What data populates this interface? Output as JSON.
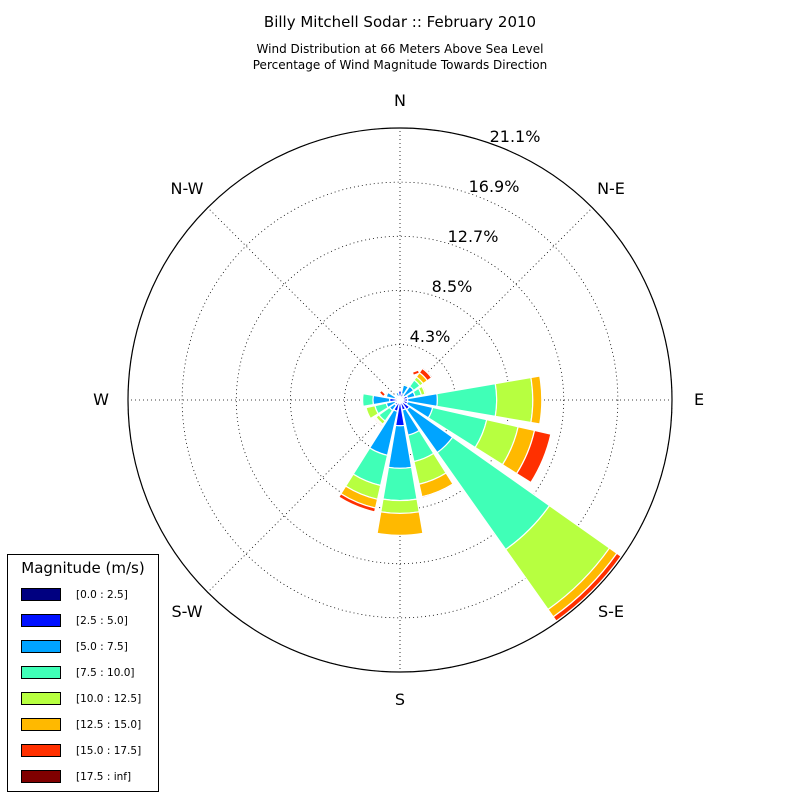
{
  "title": "Billy Mitchell Sodar :: February 2010",
  "subtitle_line1": "Wind Distribution at 66 Meters Above Sea Level",
  "subtitle_line2": "Percentage of Wind Magnitude Towards Direction",
  "legend": {
    "title": "Magnitude (m/s)",
    "items": [
      {
        "label": "[0.0 : 2.5]",
        "color": "#000080"
      },
      {
        "label": "[2.5 : 5.0]",
        "color": "#0010ff"
      },
      {
        "label": "[5.0 : 7.5]",
        "color": "#00a4ff"
      },
      {
        "label": "[7.5 : 10.0]",
        "color": "#40ffb7"
      },
      {
        "label": "[10.0 : 12.5]",
        "color": "#b7ff40"
      },
      {
        "label": "[12.5 : 15.0]",
        "color": "#ffb900"
      },
      {
        "label": "[15.0 : 17.5]",
        "color": "#ff3000"
      },
      {
        "label": "[17.5 : inf]",
        "color": "#800000"
      }
    ]
  },
  "chart_data": {
    "type": "windrose",
    "title": "Billy Mitchell Sodar :: February 2010",
    "radial_unit": "percent",
    "radial_max": 21.1,
    "radial_ticks": [
      "4.3%",
      "8.5%",
      "12.7%",
      "16.9%",
      "21.1%"
    ],
    "radial_tick_values": [
      4.3,
      8.5,
      12.7,
      16.9,
      21.1
    ],
    "direction_labels": [
      "N",
      "N-E",
      "E",
      "S-E",
      "S",
      "S-W",
      "W",
      "N-W"
    ],
    "sector_width_deg": 22.5,
    "bins": [
      "[0.0 : 2.5]",
      "[2.5 : 5.0]",
      "[5.0 : 7.5]",
      "[7.5 : 10.0]",
      "[10.0 : 12.5]",
      "[12.5 : 15.0]",
      "[15.0 : 17.5]",
      "[17.5 : inf]"
    ],
    "sectors": [
      {
        "direction_deg": 0,
        "cumulative_percent": [
          0.1,
          0.7,
          0.7,
          0.7,
          0.7,
          0.7,
          0.7,
          0.7
        ]
      },
      {
        "direction_deg": 22.5,
        "cumulative_percent": [
          0.1,
          0.5,
          1.2,
          1.2,
          1.3,
          1.3,
          1.3,
          1.3
        ]
      },
      {
        "direction_deg": 45,
        "cumulative_percent": [
          0.1,
          0.4,
          1.3,
          1.9,
          2.2,
          2.6,
          3.0,
          3.1
        ]
      },
      {
        "direction_deg": 67.5,
        "cumulative_percent": [
          0.1,
          0.6,
          1.2,
          1.7,
          2.0,
          2.1,
          2.1,
          2.1
        ]
      },
      {
        "direction_deg": 90,
        "cumulative_percent": [
          0.1,
          0.6,
          2.9,
          7.5,
          10.3,
          11.0,
          11.0,
          11.0
        ]
      },
      {
        "direction_deg": 112.5,
        "cumulative_percent": [
          0.1,
          0.6,
          2.6,
          6.9,
          9.4,
          10.7,
          12.0,
          12.0
        ]
      },
      {
        "direction_deg": 135,
        "cumulative_percent": [
          0.1,
          0.9,
          5.0,
          14.2,
          19.9,
          20.6,
          21.0,
          21.0
        ]
      },
      {
        "direction_deg": 157.5,
        "cumulative_percent": [
          0.1,
          0.8,
          2.8,
          4.9,
          6.7,
          7.7,
          7.8,
          7.8
        ]
      },
      {
        "direction_deg": 180,
        "cumulative_percent": [
          0.2,
          2.0,
          5.3,
          7.8,
          8.8,
          10.5,
          10.5,
          10.5
        ]
      },
      {
        "direction_deg": 202.5,
        "cumulative_percent": [
          0.1,
          0.9,
          4.4,
          6.8,
          7.9,
          8.6,
          8.9,
          8.9
        ]
      },
      {
        "direction_deg": 225,
        "cumulative_percent": [
          0.1,
          0.5,
          1.0,
          2.0,
          2.3,
          2.4,
          2.5,
          2.5
        ]
      },
      {
        "direction_deg": 247.5,
        "cumulative_percent": [
          0.1,
          0.4,
          1.1,
          2.0,
          2.7,
          2.7,
          2.7,
          2.7
        ]
      },
      {
        "direction_deg": 270,
        "cumulative_percent": [
          0.2,
          0.8,
          2.1,
          2.9,
          2.9,
          2.9,
          2.9,
          2.9
        ]
      },
      {
        "direction_deg": 292.5,
        "cumulative_percent": [
          0.1,
          0.4,
          1.1,
          1.2,
          1.2,
          1.2,
          1.2,
          1.2
        ]
      },
      {
        "direction_deg": 315,
        "cumulative_percent": [
          0.1,
          0.3,
          0.4,
          0.4,
          0.4,
          0.4,
          0.4,
          0.4
        ]
      },
      {
        "direction_deg": 337.5,
        "cumulative_percent": [
          0.1,
          0.3,
          0.6,
          0.6,
          0.6,
          0.6,
          0.6,
          0.6
        ]
      }
    ],
    "annotations": [
      {
        "direction_deg": 30,
        "radius_percent": 2.3,
        "color": "#ff3000"
      },
      {
        "direction_deg": 290,
        "radius_percent": 1.3,
        "color": "#ff3000"
      }
    ]
  }
}
